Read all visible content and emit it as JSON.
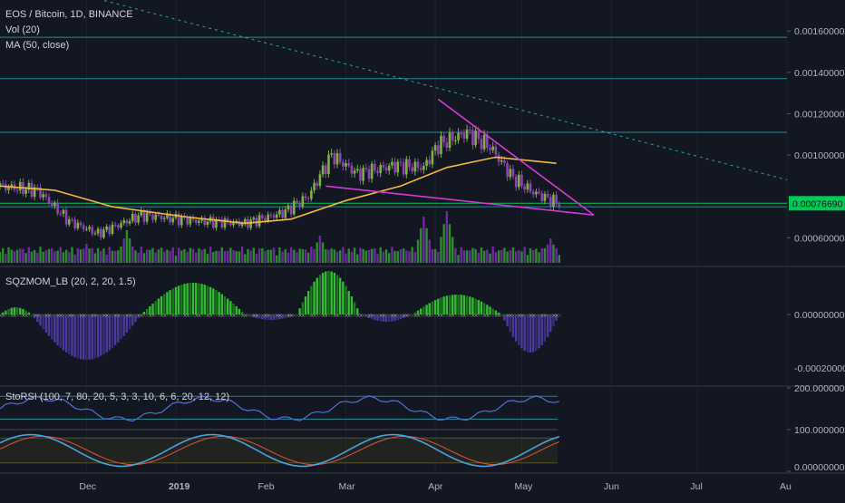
{
  "header": {
    "symbol_line": "EOS / Bitcoin, 1D, BINANCE",
    "vol_label": "Vol (20)",
    "ma_label": "MA (50, close)"
  },
  "panels": {
    "squeeze_label": "SQZMOM_LB (20, 2, 20, 1.5)",
    "stochrsi_label": "StoRSI (100, 7, 80, 20, 5, 3, 3, 10, 6, 6, 20, 12, 12)"
  },
  "price_axis": {
    "ticks": [
      "0.00160000",
      "0.00140000",
      "0.00120000",
      "0.00100000",
      "0.00060000"
    ],
    "current_price": "0.00076690"
  },
  "squeeze_axis": {
    "ticks": [
      "0.00000000",
      "-0.00020000"
    ]
  },
  "stochrsi_axis": {
    "ticks": [
      "200.00000000",
      "100.00000000",
      "0.00000000"
    ]
  },
  "time_axis": {
    "ticks": [
      "Dec",
      "2019",
      "Feb",
      "Mar",
      "Apr",
      "May",
      "Jun",
      "Jul",
      "Au"
    ]
  },
  "colors": {
    "background": "#131722",
    "grid": "#1e2230",
    "up": "#7cb342",
    "down": "#8e44ad",
    "ma": "#f4b942",
    "trendline": "#d63ad6",
    "hline": "#26a0a8",
    "current": "#00c853",
    "volume_up": "#2e8b2e",
    "volume_down": "#6a2c9e"
  },
  "chart_data": {
    "type": "candlestick",
    "symbol": "EOS / Bitcoin",
    "interval": "1D",
    "exchange": "BINANCE",
    "x_range": [
      "2018-11-01",
      "2019-08-01"
    ],
    "ylim": [
      0.00047,
      0.00175
    ],
    "key_points": [
      {
        "date": "2018-11-01",
        "price": 0.00085
      },
      {
        "date": "2018-11-14",
        "price": 0.00083
      },
      {
        "date": "2018-11-25",
        "price": 0.00068
      },
      {
        "date": "2018-12-05",
        "price": 0.00062
      },
      {
        "date": "2018-12-20",
        "price": 0.00071
      },
      {
        "date": "2019-01-10",
        "price": 0.00068
      },
      {
        "date": "2019-01-25",
        "price": 0.00067
      },
      {
        "date": "2019-02-07",
        "price": 0.00072
      },
      {
        "date": "2019-02-16",
        "price": 0.0008
      },
      {
        "date": "2019-02-24",
        "price": 0.001
      },
      {
        "date": "2019-03-05",
        "price": 0.00091
      },
      {
        "date": "2019-03-18",
        "price": 0.00095
      },
      {
        "date": "2019-03-28",
        "price": 0.00094
      },
      {
        "date": "2019-04-02",
        "price": 0.00105
      },
      {
        "date": "2019-04-12",
        "price": 0.00111
      },
      {
        "date": "2019-04-20",
        "price": 0.00104
      },
      {
        "date": "2019-04-28",
        "price": 0.00089
      },
      {
        "date": "2019-05-05",
        "price": 0.00082
      },
      {
        "date": "2019-05-13",
        "price": 0.00077
      }
    ],
    "ma50": [
      {
        "date": "2018-11-01",
        "price": 0.00085
      },
      {
        "date": "2018-11-20",
        "price": 0.00083
      },
      {
        "date": "2018-12-10",
        "price": 0.00075
      },
      {
        "date": "2019-01-05",
        "price": 0.0007
      },
      {
        "date": "2019-01-25",
        "price": 0.00067
      },
      {
        "date": "2019-02-10",
        "price": 0.00069
      },
      {
        "date": "2019-03-01",
        "price": 0.00078
      },
      {
        "date": "2019-03-20",
        "price": 0.00085
      },
      {
        "date": "2019-04-05",
        "price": 0.00094
      },
      {
        "date": "2019-04-22",
        "price": 0.00099
      },
      {
        "date": "2019-05-13",
        "price": 0.00096
      }
    ],
    "horizontal_levels": [
      0.00157,
      0.00137,
      0.00111,
      0.00075
    ],
    "current_price": 0.0007669,
    "trendlines": [
      {
        "from": {
          "date": "2019-04-02",
          "price": 0.00127
        },
        "to": {
          "date": "2019-05-26",
          "price": 0.00071
        }
      },
      {
        "from": {
          "date": "2019-02-22",
          "price": 0.00085
        },
        "to": {
          "date": "2019-05-26",
          "price": 0.00071
        }
      }
    ],
    "dashed_trendline": {
      "from": {
        "date": "2018-11-01",
        "price": 0.00188
      },
      "to": {
        "date": "2019-08-01",
        "price": 0.00088
      }
    },
    "volume": [
      {
        "date": "2018-12-01",
        "value": 0.35,
        "up": false
      },
      {
        "date": "2018-12-15",
        "value": 0.6,
        "up": true
      },
      {
        "date": "2019-02-20",
        "value": 0.5,
        "up": true
      },
      {
        "date": "2019-03-28",
        "value": 0.85,
        "up": true
      },
      {
        "date": "2019-04-05",
        "value": 0.95,
        "up": true
      },
      {
        "date": "2019-05-11",
        "value": 0.45,
        "up": true
      }
    ]
  }
}
